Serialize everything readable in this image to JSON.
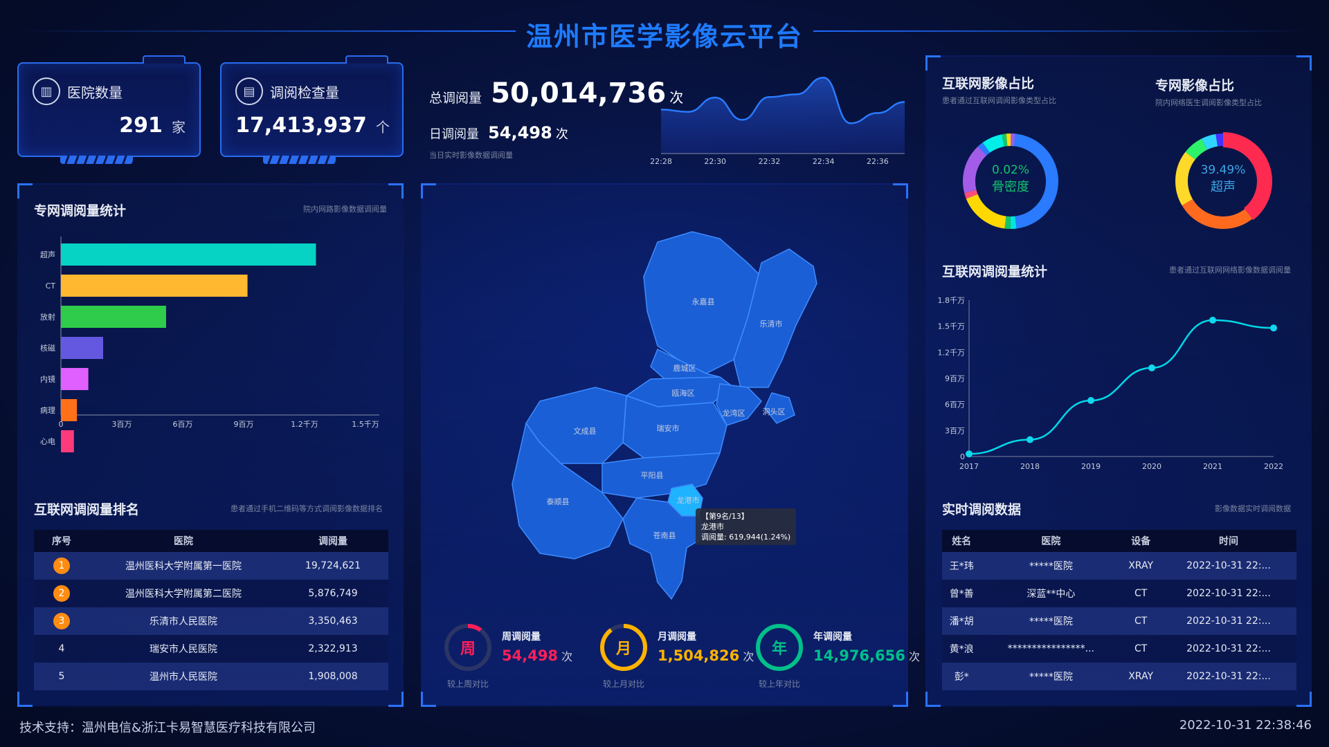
{
  "header": {
    "title": "温州市医学影像云平台"
  },
  "cards": [
    {
      "icon": "hospital-icon",
      "label": "医院数量",
      "value": "291",
      "unit": "家"
    },
    {
      "icon": "document-icon",
      "label": "调阅检查量",
      "value": "17,413,937",
      "unit": "个"
    }
  ],
  "totals": {
    "total_label": "总调阅量",
    "total_value": "50,014,736",
    "total_unit": "次",
    "daily_label": "日调阅量",
    "daily_value": "54,498",
    "daily_unit": "次",
    "daily_note": "当日实时影像数据调阅量"
  },
  "left": {
    "bar_title": "专网调阅量统计",
    "bar_sub": "院内网路影像数据调阅量",
    "rank_title": "互联网调阅量排名",
    "rank_sub": "患者通过手机二维码等方式调阅影像数据排名",
    "rank_headers": [
      "序号",
      "医院",
      "调阅量"
    ],
    "rank_rows": [
      {
        "no": "1",
        "hospital": "温州医科大学附属第一医院",
        "count": "19,724,621"
      },
      {
        "no": "2",
        "hospital": "温州医科大学附属第二医院",
        "count": "5,876,749"
      },
      {
        "no": "3",
        "hospital": "乐清市人民医院",
        "count": "3,350,463"
      },
      {
        "no": "4",
        "hospital": "瑞安市人民医院",
        "count": "2,322,913"
      },
      {
        "no": "5",
        "hospital": "温州市人民医院",
        "count": "1,908,008"
      }
    ],
    "rank_badge_color": "#ff8c12"
  },
  "map": {
    "regions": [
      "永嘉县",
      "乐清市",
      "鹿城区",
      "瓯海区",
      "龙湾区",
      "洞头区",
      "文成县",
      "瑞安市",
      "平阳县",
      "泰顺县",
      "龙港市",
      "苍南县"
    ],
    "highlight": "龙港市",
    "tooltip": {
      "rank": "【第9名/13】",
      "name": "龙港市",
      "value": "调阅量: 619,944(1.24%)"
    }
  },
  "period_stats": [
    {
      "glyph": "周",
      "label": "周调阅量",
      "value": "54,498",
      "unit": "次",
      "compare": "较上周对比",
      "color": "#ff1f5a",
      "fill": 0.1
    },
    {
      "glyph": "月",
      "label": "月调阅量",
      "value": "1,504,826",
      "unit": "次",
      "compare": "较上月对比",
      "color": "#ffb300",
      "fill": 0.9
    },
    {
      "glyph": "年",
      "label": "年调阅量",
      "value": "14,976,656",
      "unit": "次",
      "compare": "较上年对比",
      "color": "#00c08a",
      "fill": 1.0
    }
  ],
  "right": {
    "donut1_title": "互联网影像占比",
    "donut1_sub": "患者通过互联网调阅影像类型占比",
    "donut1_pct": "0.02%",
    "donut1_name": "骨密度",
    "donut2_title": "专网影像占比",
    "donut2_sub": "院内网络医生调阅影像类型占比",
    "donut2_pct": "39.49%",
    "donut2_name": "超声",
    "line_title": "互联网调阅量统计",
    "line_sub": "患者通过互联网网络影像数据调阅量",
    "rt_title": "实时调阅数据",
    "rt_sub": "影像数据实时调阅数据",
    "rt_headers": [
      "姓名",
      "医院",
      "设备",
      "时间"
    ],
    "rt_rows": [
      {
        "name": "王*玮",
        "hospital": "*****医院",
        "device": "XRAY",
        "time": "2022-10-31 22:..."
      },
      {
        "name": "曾*善",
        "hospital": "深蓝**中心",
        "device": "CT",
        "time": "2022-10-31 22:..."
      },
      {
        "name": "潘*胡",
        "hospital": "*****医院",
        "device": "CT",
        "time": "2022-10-31 22:..."
      },
      {
        "name": "黄*浪",
        "hospital": "****************...",
        "device": "CT",
        "time": "2022-10-31 22:..."
      },
      {
        "name": "彭*",
        "hospital": "*****医院",
        "device": "XRAY",
        "time": "2022-10-31 22:..."
      }
    ]
  },
  "footer": {
    "support": "技术支持：温州电信&浙江卡易智慧医疗科技有限公司",
    "datetime": "2022-10-31 22:38:46"
  },
  "chart_data": [
    {
      "type": "area",
      "x": [
        "22:28",
        "22:29",
        "22:30",
        "22:31",
        "22:32",
        "22:33",
        "22:34",
        "22:35",
        "22:36",
        "22:37"
      ],
      "values": [
        193,
        183,
        246,
        148,
        248,
        260,
        333,
        133,
        178,
        226
      ],
      "xticks": [
        "22:28",
        "22:30",
        "22:32",
        "22:34",
        "22:36"
      ],
      "color": "#2a7bff"
    },
    {
      "type": "bar",
      "orientation": "horizontal",
      "categories": [
        "超声",
        "CT",
        "放射",
        "核磁",
        "内镜",
        "病理",
        "心电"
      ],
      "values": [
        12560000,
        9190000,
        5180000,
        2080000,
        1350000,
        790000,
        640000
      ],
      "colors": [
        "#06d3c4",
        "#ffb830",
        "#2ecc4a",
        "#6457e0",
        "#e060ff",
        "#ff7018",
        "#ff3a7a"
      ],
      "xlim": [
        0,
        15000000
      ],
      "xticks": [
        "0",
        "3百万",
        "6百万",
        "9百万",
        "1.2千万",
        "1.5千万"
      ]
    },
    {
      "type": "pie",
      "donut": true,
      "values": [
        0.48,
        0.02,
        0.02,
        0.17,
        0.02,
        0.17,
        0.02,
        0.07,
        0.015,
        0.015,
        0.015,
        0.015
      ],
      "colors": [
        "#2a7bff",
        "#00e5e0",
        "#13c56b",
        "#ffd800",
        "#ff4d7a",
        "#a25ce8",
        "#2a7bff",
        "#00f0e8",
        "#13c56b",
        "#ffd800",
        "#ff4d7a",
        "#a25ce8"
      ],
      "highlight": {
        "label": "骨密度",
        "percent": 0.02
      }
    },
    {
      "type": "pie",
      "donut": true,
      "values": [
        0.3949,
        0.27,
        0.19,
        0.07,
        0.05,
        0.025
      ],
      "colors": [
        "#ff2a50",
        "#ff6a1f",
        "#ffd92a",
        "#2ef26a",
        "#2ed6ff",
        "#4433ff"
      ],
      "highlight": {
        "label": "超声",
        "percent": 39.49
      }
    },
    {
      "type": "line",
      "x": [
        "2017",
        "2018",
        "2019",
        "2020",
        "2021",
        "2022"
      ],
      "values": [
        300000,
        1940000,
        6450000,
        10200000,
        15700000,
        14800000
      ],
      "ylim": [
        0,
        18000000
      ],
      "yticks": [
        "0",
        "3百万",
        "6百万",
        "9百万",
        "1.2千万",
        "1.5千万",
        "1.8千万"
      ],
      "color": "#00d8e8"
    }
  ]
}
